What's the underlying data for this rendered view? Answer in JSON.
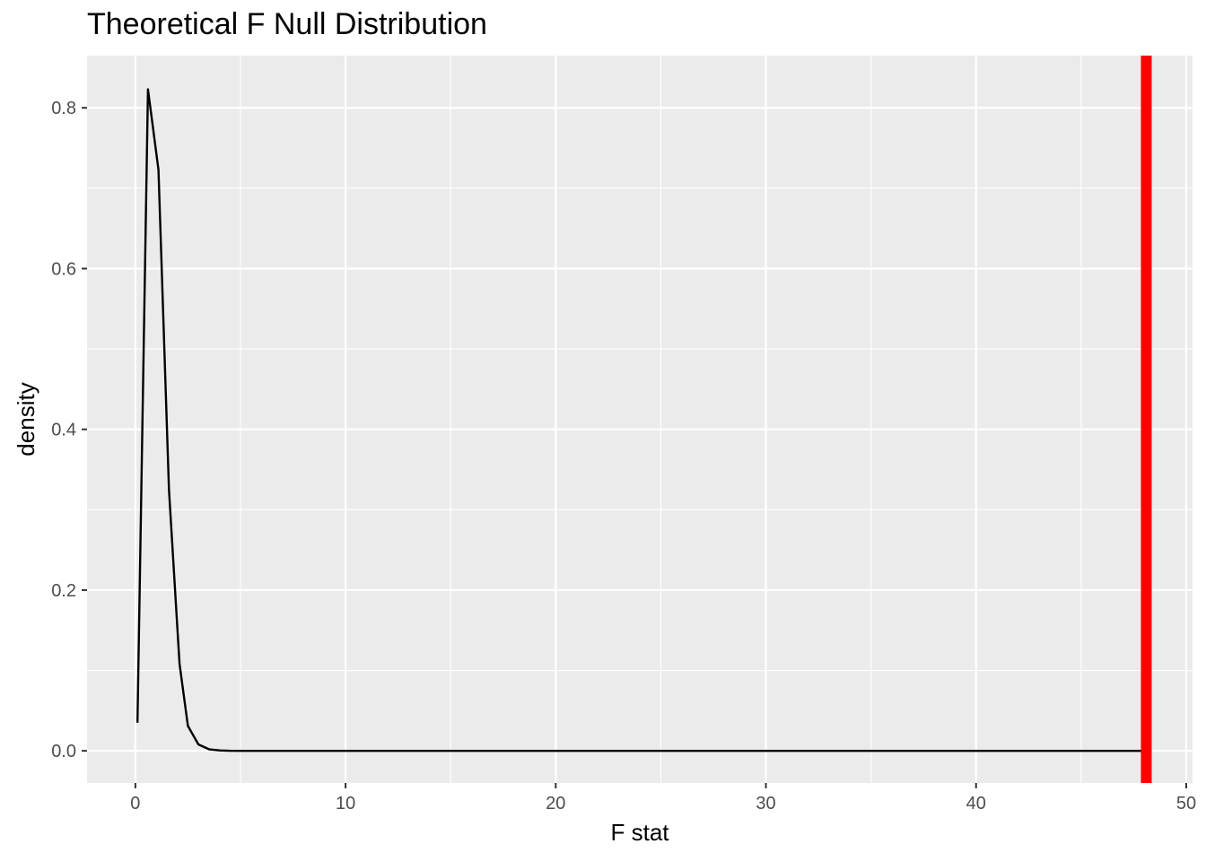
{
  "chart_data": {
    "type": "line",
    "title": "Theoretical F Null Distribution",
    "xlabel": "F stat",
    "ylabel": "density",
    "xlim": [
      -2.3,
      50.3
    ],
    "ylim": [
      -0.04,
      0.865
    ],
    "x_ticks": [
      0,
      10,
      20,
      30,
      40,
      50
    ],
    "x_tick_labels": [
      "0",
      "10",
      "20",
      "30",
      "40",
      "50"
    ],
    "y_ticks": [
      0.0,
      0.2,
      0.4,
      0.6,
      0.8
    ],
    "y_tick_labels": [
      "0.0",
      "0.2",
      "0.4",
      "0.6",
      "0.8"
    ],
    "grid": true,
    "background_color": "#ebebeb",
    "series": [
      {
        "color": "#000000",
        "x": [
          0.1,
          0.6,
          1.1,
          1.6,
          2.1,
          2.5,
          3.0,
          3.5,
          4.0,
          4.5,
          5.0,
          6.0,
          8.0,
          10.0,
          15.0,
          20.0,
          25.0,
          30.0,
          35.0,
          40.0,
          45.0,
          48.0
        ],
        "y": [
          0.035,
          0.823,
          0.723,
          0.325,
          0.108,
          0.031,
          0.008,
          0.002,
          0.0005,
          0.0001,
          0.0,
          0.0,
          0.0,
          0.0,
          0.0,
          0.0,
          0.0,
          0.0,
          0.0,
          0.0,
          0.0,
          0.0
        ]
      }
    ],
    "vline": {
      "x": 48.1,
      "color": "#ff0000"
    }
  }
}
